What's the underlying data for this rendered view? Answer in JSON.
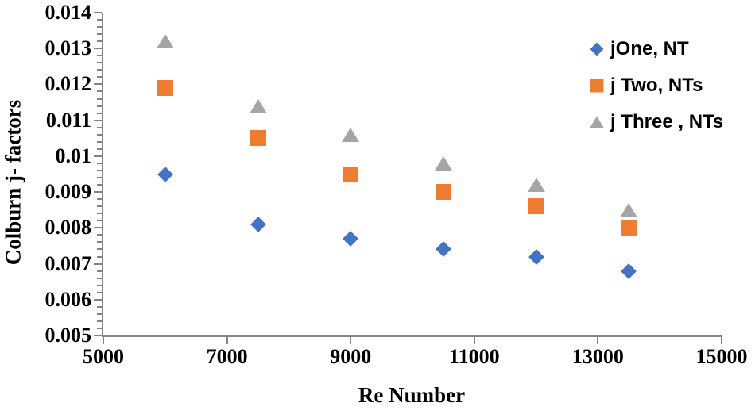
{
  "chart_data": {
    "type": "scatter",
    "title": "",
    "xlabel": "Re Number",
    "ylabel": "Colburn j- factors",
    "xlim": [
      5000,
      15000
    ],
    "ylim": [
      0.005,
      0.014
    ],
    "grid": false,
    "legend_position": "top-right",
    "x_ticks": [
      5000,
      7000,
      9000,
      11000,
      13000,
      15000
    ],
    "x_tick_labels": [
      "5000",
      "7000",
      "9000",
      "11000",
      "13000",
      "15000"
    ],
    "y_ticks": [
      0.005,
      0.006,
      0.007,
      0.008,
      0.009,
      0.01,
      0.011,
      0.012,
      0.013,
      0.014
    ],
    "y_tick_labels": [
      "0.005",
      "0.006",
      "0.007",
      "0.008",
      "0.009",
      "0.01",
      "0.011",
      "0.012",
      "0.013",
      "0.014"
    ],
    "y_minor_tick_step": 0.0002,
    "x": [
      6000,
      7500,
      9000,
      10500,
      12000,
      13500
    ],
    "series": [
      {
        "name": "jOne, NT",
        "marker": "diamond",
        "color": "#4472C4",
        "values": [
          0.0095,
          0.0081,
          0.0077,
          0.0074,
          0.0072,
          0.0068
        ]
      },
      {
        "name": "j Two, NTs",
        "marker": "square",
        "color": "#ED7D31",
        "values": [
          0.0119,
          0.0105,
          0.0095,
          0.009,
          0.0086,
          0.008
        ]
      },
      {
        "name": "j Three , NTs",
        "marker": "triangle",
        "color": "#A5A5A5",
        "values": [
          0.0132,
          0.0114,
          0.0106,
          0.0098,
          0.0092,
          0.0085
        ]
      }
    ],
    "axis_color": "#848484",
    "text_color": "#000000"
  }
}
